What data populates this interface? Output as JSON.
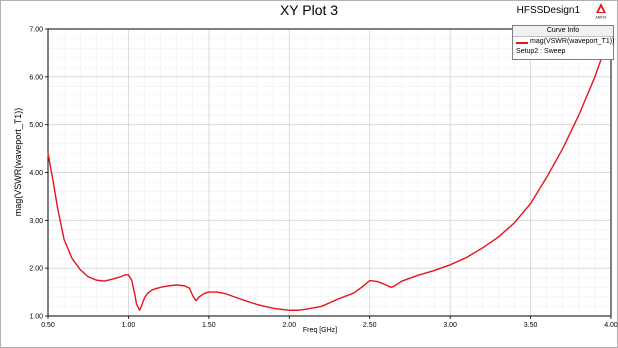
{
  "header": {
    "title": "XY Plot 3",
    "design_name": "HFSSDesign1",
    "logo_text": "ANSYS"
  },
  "legend": {
    "heading": "Curve Info",
    "curve_label": "mag(VSWR(waveport_T1))",
    "setup_label": "Setup2 : Sweep"
  },
  "colors": {
    "curve": "#e8131b",
    "grid": "#d4d4d4",
    "axis": "#000000"
  },
  "chart_data": {
    "type": "line",
    "title": "XY Plot 3",
    "xlabel": "Freq [GHz]",
    "ylabel": "mag(VSWR(waveport_T1))",
    "xlim": [
      0.5,
      4.0
    ],
    "ylim": [
      1.0,
      7.0
    ],
    "x_ticks": [
      "0.50",
      "1.00",
      "1.50",
      "2.00",
      "2.50",
      "3.00",
      "3.50",
      "4.00"
    ],
    "y_ticks": [
      "1.00",
      "2.00",
      "3.00",
      "4.00",
      "5.00",
      "6.00",
      "7.00"
    ],
    "grid": true,
    "legend_position": "top-right",
    "series": [
      {
        "name": "mag(VSWR(waveport_T1))",
        "color": "#e8131b",
        "x": [
          0.5,
          0.53,
          0.56,
          0.6,
          0.65,
          0.7,
          0.75,
          0.8,
          0.85,
          0.9,
          0.95,
          0.98,
          1.0,
          1.02,
          1.04,
          1.05,
          1.07,
          1.08,
          1.1,
          1.12,
          1.15,
          1.2,
          1.25,
          1.3,
          1.35,
          1.38,
          1.4,
          1.42,
          1.44,
          1.47,
          1.5,
          1.55,
          1.6,
          1.7,
          1.8,
          1.9,
          2.0,
          2.05,
          2.1,
          2.2,
          2.3,
          2.4,
          2.45,
          2.5,
          2.55,
          2.6,
          2.63,
          2.65,
          2.7,
          2.8,
          2.9,
          3.0,
          3.1,
          3.2,
          3.3,
          3.4,
          3.5,
          3.6,
          3.7,
          3.8,
          3.9,
          4.0
        ],
        "y": [
          4.4,
          3.85,
          3.25,
          2.6,
          2.2,
          1.97,
          1.82,
          1.75,
          1.73,
          1.77,
          1.82,
          1.86,
          1.86,
          1.75,
          1.45,
          1.25,
          1.12,
          1.2,
          1.38,
          1.48,
          1.55,
          1.6,
          1.63,
          1.65,
          1.63,
          1.58,
          1.42,
          1.32,
          1.4,
          1.47,
          1.5,
          1.5,
          1.47,
          1.35,
          1.24,
          1.16,
          1.12,
          1.12,
          1.14,
          1.2,
          1.35,
          1.48,
          1.6,
          1.74,
          1.72,
          1.65,
          1.6,
          1.62,
          1.73,
          1.85,
          1.95,
          2.07,
          2.22,
          2.42,
          2.65,
          2.95,
          3.35,
          3.9,
          4.5,
          5.2,
          6.0,
          6.95
        ]
      }
    ]
  }
}
